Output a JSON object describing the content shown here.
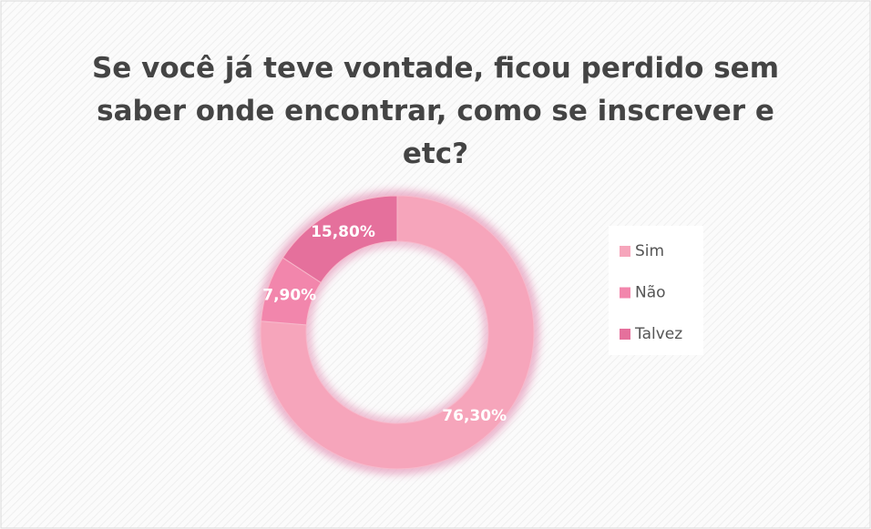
{
  "chart_data": {
    "type": "donut",
    "title": "Se você já teve vontade, ficou perdido sem saber onde encontrar, como se inscrever e etc?",
    "categories": [
      "Sim",
      "Não",
      "Talvez"
    ],
    "values": [
      76.3,
      7.9,
      15.8
    ],
    "value_labels": [
      "76,30%",
      "7,90%",
      "15,80%"
    ],
    "colors": [
      "#f6a5bb",
      "#f286ac",
      "#e5709c"
    ],
    "legend": "right"
  }
}
